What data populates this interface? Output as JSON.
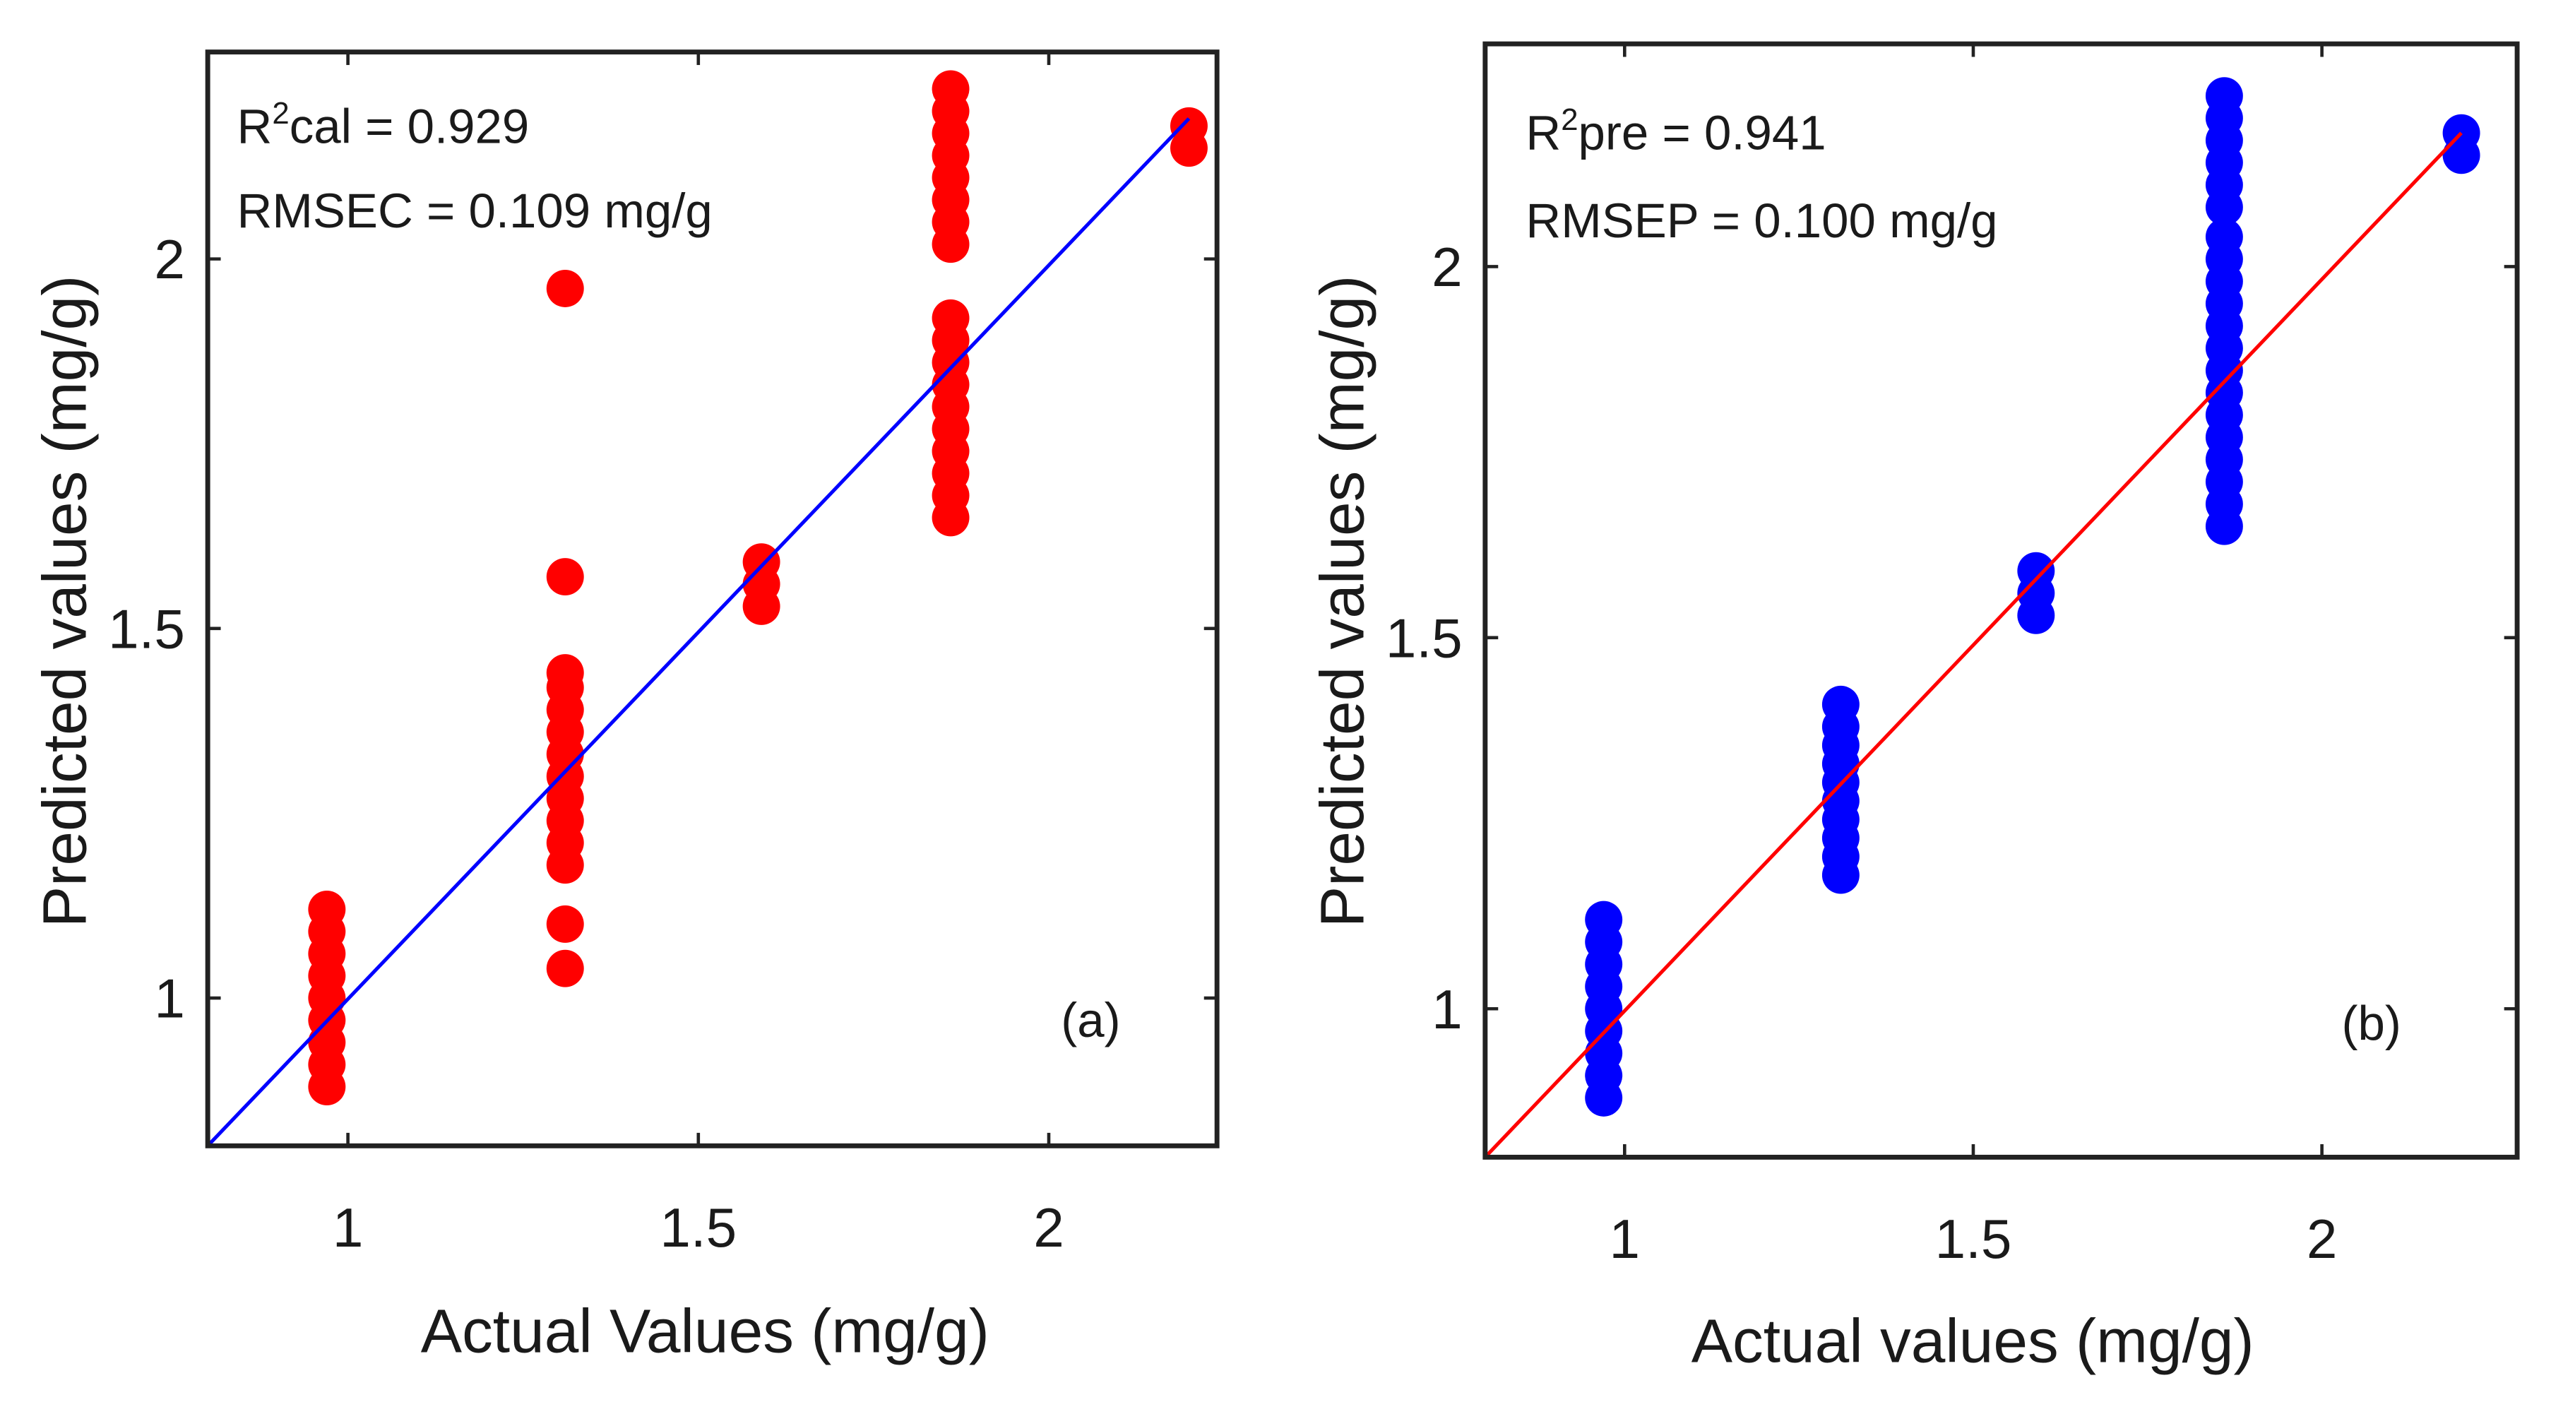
{
  "chart_data": [
    {
      "type": "scatter",
      "panel_label": "(a)",
      "xlabel": "Actual Values (mg/g)",
      "ylabel": "Predicted values (mg/g)",
      "xlim": [
        0.8,
        2.24
      ],
      "ylim": [
        0.8,
        2.28
      ],
      "xticks": [
        1,
        1.5,
        2
      ],
      "xtick_labels": [
        "1",
        "1.5",
        "2"
      ],
      "yticks": [
        1,
        1.5,
        2
      ],
      "ytick_labels": [
        "1",
        "1.5",
        "2"
      ],
      "annotation": {
        "r2_prefix": "R",
        "r2_sup": "2",
        "r2_suffix": "cal = 0.929",
        "rmse": "RMSEC =  0.109 mg/g"
      },
      "marker_color": "#ff0000",
      "line_color": "#0000ff",
      "fit_line": [
        [
          0.8,
          0.8
        ],
        [
          2.2,
          2.19
        ]
      ],
      "groups": [
        {
          "x": 0.97,
          "y": [
            0.88,
            0.91,
            0.94,
            0.97,
            1.0,
            1.03,
            1.06,
            1.09,
            1.12
          ]
        },
        {
          "x": 1.31,
          "y": [
            1.04,
            1.1,
            1.18,
            1.21,
            1.24,
            1.27,
            1.3,
            1.33,
            1.36,
            1.39,
            1.42,
            1.44,
            1.57,
            1.96
          ]
        },
        {
          "x": 1.59,
          "y": [
            1.53,
            1.56,
            1.59
          ]
        },
        {
          "x": 1.86,
          "y": [
            1.65,
            1.68,
            1.71,
            1.74,
            1.77,
            1.8,
            1.83,
            1.86,
            1.89,
            1.92,
            2.02,
            2.05,
            2.08,
            2.11,
            2.14,
            2.17,
            2.2,
            2.23
          ]
        },
        {
          "x": 2.2,
          "y": [
            2.15,
            2.18
          ]
        }
      ]
    },
    {
      "type": "scatter",
      "panel_label": "(b)",
      "xlabel": "Actual values (mg/g)",
      "ylabel": "Predicted values (mg/g)",
      "xlim": [
        0.8,
        2.28
      ],
      "ylim": [
        0.8,
        2.3
      ],
      "xticks": [
        1,
        1.5,
        2
      ],
      "xtick_labels": [
        "1",
        "1.5",
        "2"
      ],
      "yticks": [
        1,
        1.5,
        2
      ],
      "ytick_labels": [
        "1",
        "1.5",
        "2"
      ],
      "annotation": {
        "r2_prefix": "R",
        "r2_sup": "2",
        "r2_suffix": "pre = 0.941",
        "rmse": "RMSEP =  0.100 mg/g"
      },
      "marker_color": "#0000ff",
      "line_color": "#ff0000",
      "fit_line": [
        [
          0.8,
          0.8
        ],
        [
          2.2,
          2.18
        ]
      ],
      "groups": [
        {
          "x": 0.97,
          "y": [
            0.88,
            0.91,
            0.94,
            0.97,
            1.0,
            1.03,
            1.06,
            1.09,
            1.12
          ]
        },
        {
          "x": 1.31,
          "y": [
            1.18,
            1.205,
            1.23,
            1.255,
            1.28,
            1.305,
            1.33,
            1.355,
            1.38,
            1.41
          ]
        },
        {
          "x": 1.59,
          "y": [
            1.53,
            1.56,
            1.59
          ]
        },
        {
          "x": 1.86,
          "y": [
            1.65,
            1.68,
            1.71,
            1.74,
            1.77,
            1.8,
            1.83,
            1.86,
            1.89,
            1.92,
            1.95,
            1.98,
            2.01,
            2.04,
            2.08,
            2.11,
            2.14,
            2.17,
            2.2,
            2.23
          ]
        },
        {
          "x": 2.2,
          "y": [
            2.15,
            2.18
          ]
        }
      ]
    }
  ]
}
